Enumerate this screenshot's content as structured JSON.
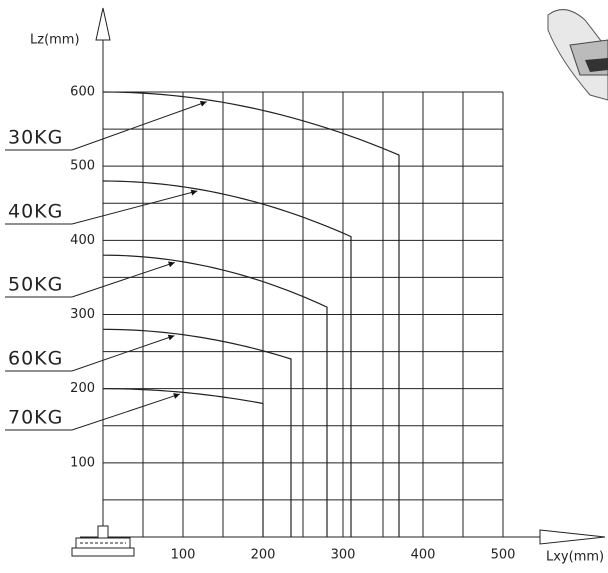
{
  "chart_data": {
    "type": "line",
    "y_label": "Lz(mm)",
    "x_label": "Lxy(mm)",
    "xlim": [
      0,
      500
    ],
    "ylim": [
      0,
      600
    ],
    "xticks": [
      100,
      200,
      300,
      400,
      500
    ],
    "yticks": [
      100,
      200,
      300,
      400,
      500,
      600
    ],
    "grid": true,
    "series": [
      {
        "name": "30KG",
        "color": "#222222",
        "x": [
          0,
          370,
          370
        ],
        "values": [
          600,
          515,
          0
        ]
      },
      {
        "name": "40KG",
        "color": "#222222",
        "x": [
          0,
          310,
          310
        ],
        "values": [
          480,
          405,
          0
        ]
      },
      {
        "name": "50KG",
        "color": "#222222",
        "x": [
          0,
          280,
          280
        ],
        "values": [
          380,
          310,
          0
        ]
      },
      {
        "name": "60KG",
        "color": "#222222",
        "x": [
          0,
          235,
          235
        ],
        "values": [
          280,
          240,
          0
        ]
      },
      {
        "name": "70KG",
        "color": "#222222",
        "x": [
          0,
          200,
          200
        ],
        "values": [
          200,
          180,
          0
        ]
      }
    ]
  }
}
